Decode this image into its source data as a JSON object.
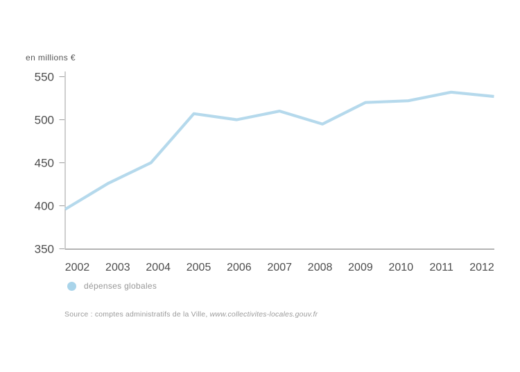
{
  "chart": {
    "unit_label": "en millions €",
    "axis_color": "#b3b3b3",
    "tick_color": "#9e9e9e",
    "label_color": "#4d4d4d",
    "line_color": "#b5d9ec",
    "y_ticks": [
      550,
      500,
      450,
      400,
      350
    ]
  },
  "chart_data": {
    "type": "line",
    "title": "",
    "ylabel": "en millions €",
    "x": [
      "2002",
      "2003",
      "2004",
      "2005",
      "2006",
      "2007",
      "2008",
      "2009",
      "2010",
      "2011",
      "2012"
    ],
    "series": [
      {
        "name": "dépenses globales",
        "values": [
          396,
          426,
          450,
          507,
          500,
          510,
          495,
          520,
          522,
          532,
          527
        ]
      }
    ],
    "ylim": [
      350,
      550
    ],
    "y_tick_step": 50,
    "grid": false,
    "legend_position": "bottom-left"
  },
  "legend": {
    "marker_color": "#a9d4ea",
    "label": "dépenses globales"
  },
  "source": {
    "prefix": "Source : comptes administratifs de la Ville, ",
    "url": "www.collectivites-locales.gouv.fr"
  }
}
